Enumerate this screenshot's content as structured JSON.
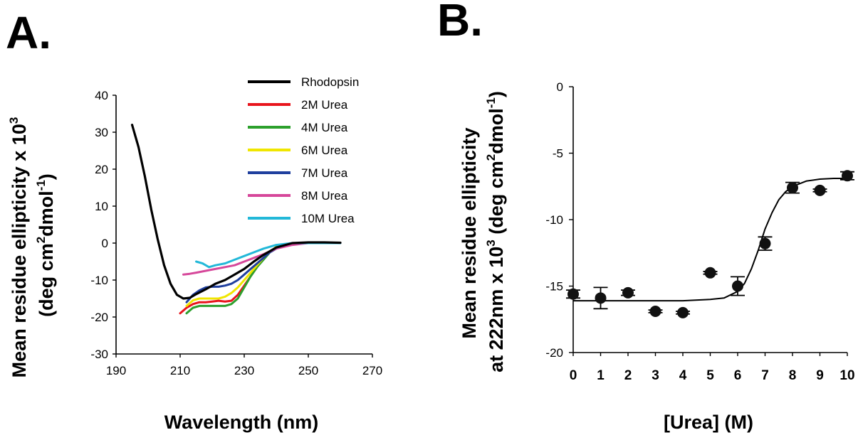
{
  "panel_labels": {
    "a": "A.",
    "b": "B."
  },
  "chart_data": [
    {
      "type": "line",
      "panel": "A.",
      "xlabel": "Wavelength (nm)",
      "ylabel_line1_main": "Mean residue ellipticity x 10",
      "ylabel_line1_sup": "3",
      "ylabel_line2_pre": "(deg cm",
      "ylabel_line2_sup1": "2",
      "ylabel_line2_mid": "dmol",
      "ylabel_line2_sup2": "-1",
      "ylabel_line2_post": ")",
      "xlim": [
        190,
        270
      ],
      "ylim": [
        -30,
        40
      ],
      "xticks": [
        "190",
        "210",
        "230",
        "250",
        "270"
      ],
      "yticks": [
        "40",
        "30",
        "20",
        "10",
        "0",
        "-10",
        "-20",
        "-30"
      ],
      "legend_position": "top-right",
      "grid": false,
      "series": [
        {
          "name": "Rhodopsin",
          "color": "#000000",
          "x": [
            195,
            197,
            199,
            201,
            203,
            205,
            207,
            209,
            211,
            213,
            215,
            218,
            221,
            224,
            227,
            230,
            233,
            236,
            240,
            245,
            250,
            255,
            260
          ],
          "y": [
            32,
            26,
            18,
            9,
            1,
            -6,
            -11,
            -14,
            -15,
            -14.8,
            -13.8,
            -12.5,
            -11,
            -10,
            -8.5,
            -7,
            -5,
            -3.2,
            -1.2,
            0,
            0.2,
            0.2,
            0.1
          ]
        },
        {
          "name": "2M Urea",
          "color": "#e8141c",
          "x": [
            210,
            212,
            214,
            216,
            218,
            220,
            222,
            224,
            226,
            228,
            230,
            232,
            234,
            236,
            238,
            240
          ],
          "y": [
            -19,
            -17.5,
            -16.5,
            -16,
            -16,
            -15.8,
            -15.6,
            -15.8,
            -15.6,
            -14,
            -11.5,
            -9,
            -6.5,
            -4,
            -2.5,
            -1
          ]
        },
        {
          "name": "4M Urea",
          "color": "#2ca02c",
          "x": [
            212,
            214,
            216,
            218,
            220,
            222,
            224,
            226,
            228,
            230,
            232,
            234,
            236,
            238,
            240
          ],
          "y": [
            -19,
            -17.5,
            -17,
            -17,
            -17,
            -17,
            -17,
            -16.5,
            -15,
            -12,
            -9,
            -6.5,
            -4.5,
            -2.5,
            -1
          ]
        },
        {
          "name": "6M Urea",
          "color": "#f0e600",
          "x": [
            212,
            214,
            216,
            218,
            220,
            222,
            224,
            226,
            228,
            230,
            232,
            234,
            236,
            238,
            240
          ],
          "y": [
            -17,
            -15.5,
            -15,
            -15,
            -15,
            -15,
            -14.5,
            -13.5,
            -12,
            -10,
            -8,
            -6,
            -4,
            -2.5,
            -1
          ]
        },
        {
          "name": "7M Urea",
          "color": "#1f3f9e",
          "x": [
            212,
            214,
            216,
            218,
            220,
            222,
            224,
            226,
            228,
            230,
            232,
            234,
            236,
            238,
            240
          ],
          "y": [
            -16,
            -14,
            -12.8,
            -12,
            -11.8,
            -11.8,
            -11.5,
            -11,
            -10,
            -8.5,
            -7,
            -5.5,
            -4,
            -2.5,
            -1.5
          ]
        },
        {
          "name": "8M Urea",
          "color": "#d6479a",
          "x": [
            211,
            213,
            215,
            218,
            221,
            224,
            227,
            230,
            233,
            236,
            240,
            245,
            250,
            255,
            260
          ],
          "y": [
            -8.5,
            -8.3,
            -8,
            -7.5,
            -7,
            -6.5,
            -6,
            -5,
            -4,
            -3,
            -1.5,
            -0.5,
            0,
            0,
            0
          ]
        },
        {
          "name": "10M Urea",
          "color": "#22b8d8",
          "x": [
            215,
            217,
            219,
            221,
            224,
            227,
            230,
            233,
            236,
            240,
            245,
            250,
            255,
            260
          ],
          "y": [
            -5,
            -5.5,
            -6.5,
            -6,
            -5.5,
            -4.5,
            -3.5,
            -2.5,
            -1.5,
            -0.5,
            0,
            0,
            0,
            0
          ]
        }
      ]
    },
    {
      "type": "scatter",
      "panel": "B.",
      "xlabel": "[Urea] (M)",
      "ylabel_line1": "Mean residue ellipticity",
      "ylabel_line2_pre": "at 222nm x 10",
      "ylabel_line2_sup0": "3",
      "ylabel_line2_mid1": " (deg cm",
      "ylabel_line2_sup1": "2",
      "ylabel_line2_mid2": "dmol",
      "ylabel_line2_sup2": "-1",
      "ylabel_line2_post": ")",
      "xlim": [
        0,
        10
      ],
      "ylim": [
        -20,
        0
      ],
      "xticks": [
        "0",
        "1",
        "2",
        "3",
        "4",
        "5",
        "6",
        "7",
        "8",
        "9",
        "10"
      ],
      "yticks": [
        "0",
        "-5",
        "-10",
        "-15",
        "-20"
      ],
      "grid": false,
      "points": {
        "x": [
          0,
          1,
          2,
          3,
          4,
          5,
          6,
          7,
          8,
          9,
          10
        ],
        "y": [
          -15.6,
          -15.9,
          -15.5,
          -16.9,
          -17.0,
          -14.0,
          -15.0,
          -11.8,
          -7.6,
          -7.8,
          -6.7
        ],
        "yerr": [
          0.3,
          0.8,
          0.2,
          0.1,
          0.1,
          0.1,
          0.7,
          0.5,
          0.4,
          0.1,
          0.3
        ]
      },
      "fit": {
        "x": [
          0,
          1,
          2,
          3,
          4,
          5,
          5.5,
          6,
          6.25,
          6.5,
          6.75,
          7,
          7.25,
          7.5,
          7.75,
          8,
          8.5,
          9,
          9.5,
          10
        ],
        "y": [
          -16.1,
          -16.1,
          -16.1,
          -16.1,
          -16.1,
          -16.0,
          -15.9,
          -15.4,
          -14.8,
          -13.7,
          -12.3,
          -10.7,
          -9.5,
          -8.5,
          -7.9,
          -7.5,
          -7.1,
          -6.95,
          -6.9,
          -6.9
        ]
      }
    }
  ]
}
